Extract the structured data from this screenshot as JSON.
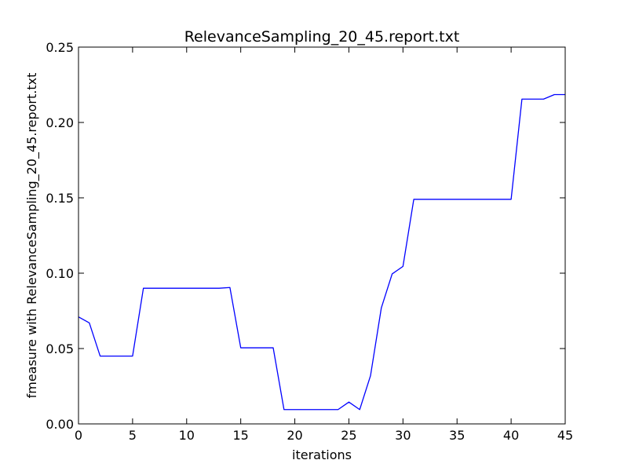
{
  "chart_data": {
    "type": "line",
    "title": "RelevanceSampling_20_45.report.txt",
    "xlabel": "iterations",
    "ylabel": "fmeasure with RelevanceSampling_20_45.report.txt",
    "xlim": [
      0,
      45
    ],
    "ylim": [
      0,
      0.25
    ],
    "xticks": [
      0,
      5,
      10,
      15,
      20,
      25,
      30,
      35,
      40,
      45
    ],
    "xtick_labels": [
      "0",
      "5",
      "10",
      "15",
      "20",
      "25",
      "30",
      "35",
      "40",
      "45"
    ],
    "yticks": [
      0,
      0.05,
      0.1,
      0.15,
      0.2,
      0.25
    ],
    "ytick_labels": [
      "0.00",
      "0.05",
      "0.10",
      "0.15",
      "0.20",
      "0.25"
    ],
    "grid": false,
    "series": [
      {
        "color": "#0000ff",
        "x": [
          0,
          1,
          2,
          3,
          4,
          5,
          6,
          7,
          8,
          9,
          10,
          11,
          12,
          13,
          14,
          15,
          16,
          17,
          18,
          19,
          20,
          21,
          22,
          23,
          24,
          25,
          26,
          27,
          28,
          29,
          30,
          31,
          32,
          33,
          34,
          35,
          36,
          37,
          38,
          39,
          40,
          41,
          42,
          43,
          44,
          45
        ],
        "y": [
          0.071,
          0.067,
          0.045,
          0.045,
          0.045,
          0.045,
          0.09,
          0.09,
          0.09,
          0.09,
          0.09,
          0.09,
          0.09,
          0.09,
          0.0905,
          0.0505,
          0.0505,
          0.0505,
          0.0505,
          0.0095,
          0.0095,
          0.0095,
          0.0095,
          0.0095,
          0.0095,
          0.0145,
          0.0095,
          0.032,
          0.077,
          0.0995,
          0.1045,
          0.149,
          0.149,
          0.149,
          0.149,
          0.149,
          0.149,
          0.149,
          0.149,
          0.149,
          0.149,
          0.2155,
          0.2155,
          0.2155,
          0.2185,
          0.2185
        ]
      }
    ]
  }
}
